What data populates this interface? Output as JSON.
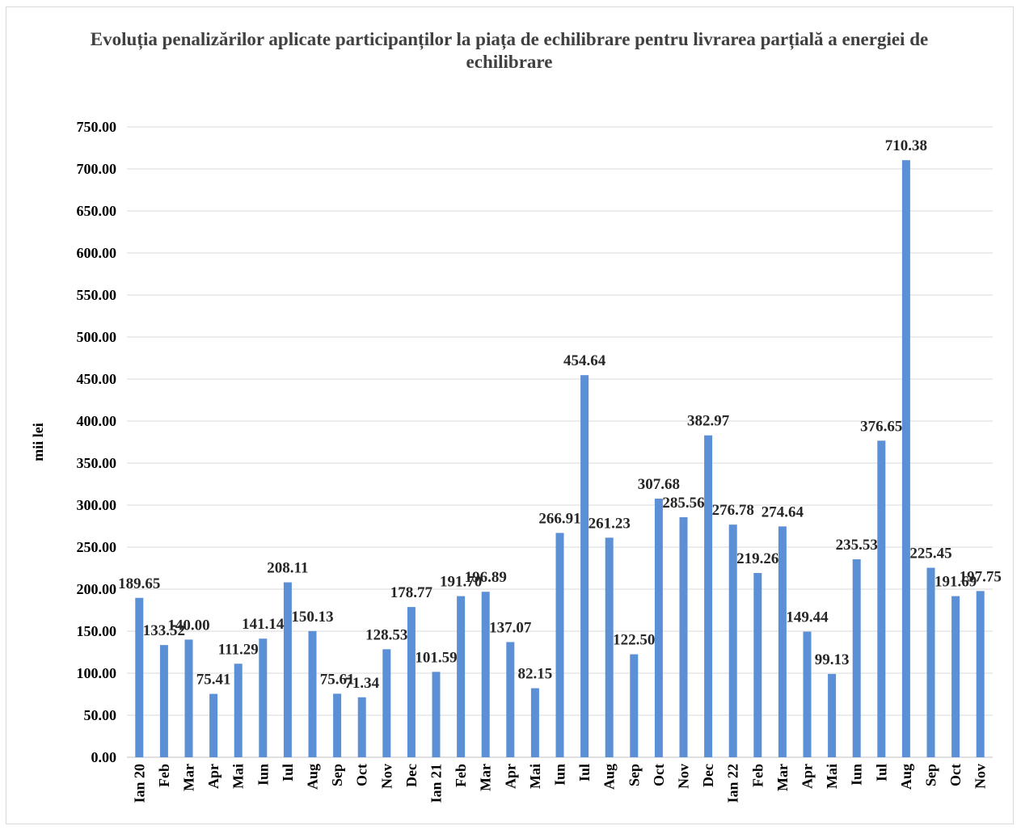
{
  "chart_data": {
    "type": "bar",
    "title": "Evoluția penalizărilor aplicate participanților la piața de echilibrare  pentru livrarea parțială a energiei de echilibrare",
    "ylabel": "mii lei",
    "xlabel": "",
    "ylim": [
      0,
      750
    ],
    "y_ticks": [
      "0.00",
      "50.00",
      "100.00",
      "150.00",
      "200.00",
      "250.00",
      "300.00",
      "350.00",
      "400.00",
      "450.00",
      "500.00",
      "550.00",
      "600.00",
      "650.00",
      "700.00",
      "750.00"
    ],
    "grid": true,
    "bar_color": "#5b8fd6",
    "categories": [
      "Ian 20",
      "Feb",
      "Mar",
      "Apr",
      "Mai",
      "Iun",
      "Iul",
      "Aug",
      "Sep",
      "Oct",
      "Nov",
      "Dec",
      "Ian 21",
      "Feb",
      "Mar",
      "Apr",
      "Mai",
      "Iun",
      "Iul",
      "Aug",
      "Sep",
      "Oct",
      "Nov",
      "Dec",
      "Ian 22",
      "Feb",
      "Mar",
      "Apr",
      "Mai",
      "Iun",
      "Iul",
      "Aug",
      "Sep",
      "Oct",
      "Nov"
    ],
    "values": [
      189.65,
      133.52,
      140.0,
      75.41,
      111.29,
      141.14,
      208.11,
      150.13,
      75.61,
      71.34,
      128.53,
      178.77,
      101.59,
      191.7,
      196.89,
      137.07,
      82.15,
      266.91,
      454.64,
      261.23,
      122.5,
      307.68,
      285.56,
      382.97,
      276.78,
      219.26,
      274.64,
      149.44,
      99.13,
      235.53,
      376.65,
      710.38,
      225.45,
      191.69,
      197.75
    ],
    "data_labels": [
      "189.65",
      "133.52",
      "140.00",
      "75.41",
      "111.29",
      "141.14",
      "208.11",
      "150.13",
      "75.61",
      "71.34",
      "128.53",
      "178.77",
      "101.59",
      "191.70",
      "196.89",
      "137.07",
      "82.15",
      "266.91",
      "454.64",
      "261.23",
      "122.50",
      "307.68",
      "285.56",
      "382.97",
      "276.78",
      "219.26",
      "274.64",
      "149.44",
      "99.13",
      "235.53",
      "376.65",
      "710.38",
      "225.45",
      "191.69",
      "197.75"
    ]
  }
}
